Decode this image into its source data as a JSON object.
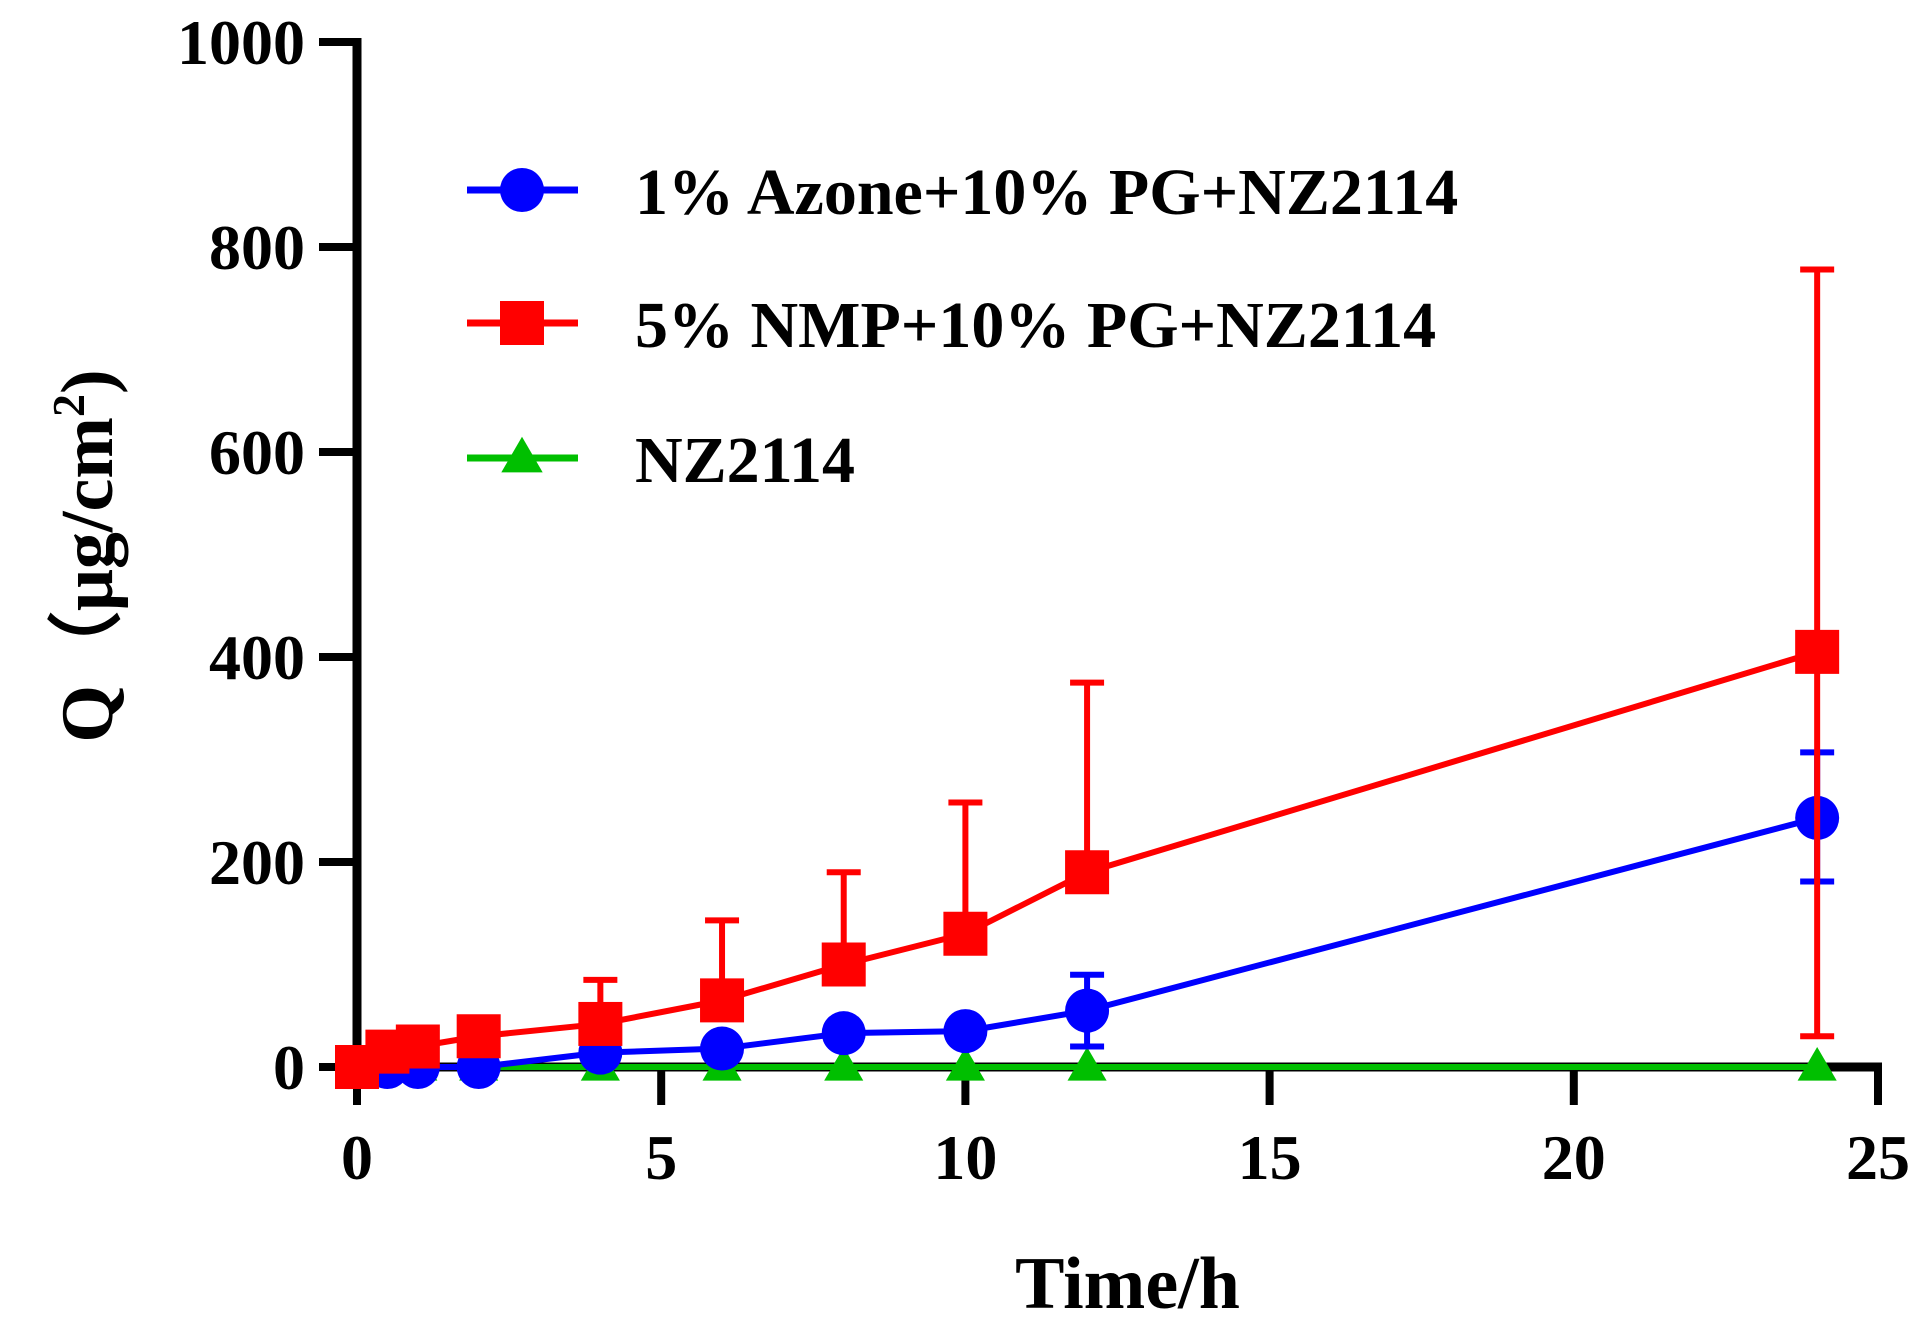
{
  "chart_data": {
    "type": "line",
    "title": "",
    "xlabel": "Time/h",
    "ylabel_main": "Q（μg/cm",
    "ylabel_sup": "2",
    "ylabel_close": ")",
    "xlim": [
      0,
      25
    ],
    "ylim": [
      0,
      1000
    ],
    "xticks": [
      0,
      5,
      10,
      15,
      20,
      25
    ],
    "yticks": [
      0,
      200,
      400,
      600,
      800,
      1000
    ],
    "xtick_labels": [
      "0",
      "5",
      "10",
      "15",
      "20",
      "25"
    ],
    "ytick_labels": [
      "0",
      "200",
      "400",
      "600",
      "800",
      "1000"
    ],
    "grid": false,
    "legend_position": "top-left",
    "series": [
      {
        "name": "1% Azone+10% PG+NZ2114",
        "color": "#0000ff",
        "marker": "circle",
        "x": [
          0,
          0.5,
          1,
          2,
          4,
          6,
          8,
          10,
          12,
          24
        ],
        "y": [
          0,
          0,
          0,
          0,
          14,
          18,
          33,
          35,
          55,
          243
        ],
        "err_upper": [
          0,
          0,
          0,
          0,
          0,
          0,
          0,
          0,
          90,
          307
        ],
        "err_lower": [
          0,
          0,
          0,
          0,
          0,
          0,
          0,
          0,
          20,
          181
        ]
      },
      {
        "name": "5% NMP+10% PG+NZ2114",
        "color": "#ff0000",
        "marker": "square",
        "x": [
          0,
          0.5,
          1,
          2,
          4,
          6,
          8,
          10,
          12,
          24
        ],
        "y": [
          0,
          15,
          20,
          30,
          42,
          65,
          100,
          130,
          190,
          405
        ],
        "err_upper": [
          0,
          0,
          0,
          0,
          85,
          143,
          190,
          258,
          375,
          778
        ],
        "err_lower": [
          0,
          0,
          0,
          0,
          0,
          0,
          0,
          0,
          0,
          30
        ]
      },
      {
        "name": "NZ2114",
        "color": "#00bf00",
        "marker": "triangle",
        "x": [
          0,
          0.5,
          1,
          2,
          4,
          6,
          8,
          10,
          12,
          24
        ],
        "y": [
          0,
          0,
          0,
          0,
          0,
          0,
          0,
          0,
          0,
          0
        ],
        "err_upper": [
          0,
          0,
          0,
          0,
          0,
          0,
          0,
          0,
          0,
          0
        ],
        "err_lower": [
          0,
          0,
          0,
          0,
          0,
          0,
          0,
          0,
          0,
          0
        ]
      }
    ]
  }
}
